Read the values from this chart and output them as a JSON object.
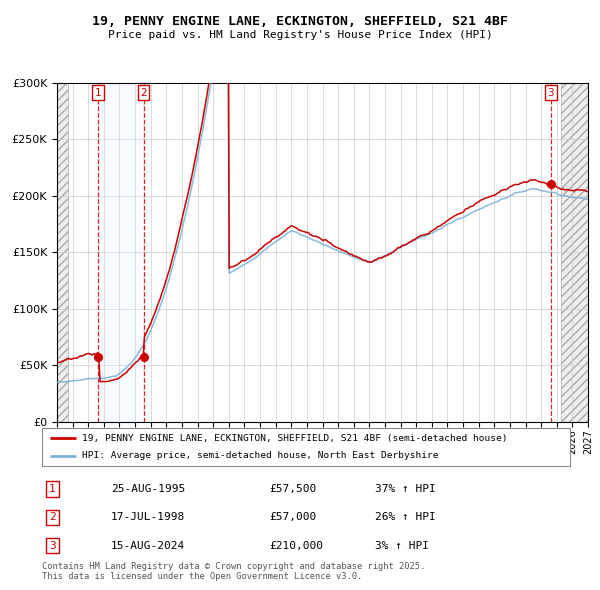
{
  "title_line1": "19, PENNY ENGINE LANE, ECKINGTON, SHEFFIELD, S21 4BF",
  "title_line2": "Price paid vs. HM Land Registry's House Price Index (HPI)",
  "hpi_color": "#7ab4d8",
  "price_color": "#cc0000",
  "shade_color": "#ddeeff",
  "transactions": [
    {
      "num": 1,
      "date_num": 1995.646,
      "price": 57500,
      "label": "25-AUG-1995",
      "price_str": "£57,500",
      "hpi_str": "37% ↑ HPI"
    },
    {
      "num": 2,
      "date_num": 1998.542,
      "price": 57000,
      "label": "17-JUL-1998",
      "price_str": "£57,000",
      "hpi_str": "26% ↑ HPI"
    },
    {
      "num": 3,
      "date_num": 2024.621,
      "price": 210000,
      "label": "15-AUG-2024",
      "price_str": "£210,000",
      "hpi_str": "3% ↑ HPI"
    }
  ],
  "ylim": [
    0,
    300000
  ],
  "xlim_start": 1993.0,
  "xlim_end": 2027.0,
  "legend_line1": "19, PENNY ENGINE LANE, ECKINGTON, SHEFFIELD, S21 4BF (semi-detached house)",
  "legend_line2": "HPI: Average price, semi-detached house, North East Derbyshire",
  "footer": "Contains HM Land Registry data © Crown copyright and database right 2025.\nThis data is licensed under the Open Government Licence v3.0."
}
